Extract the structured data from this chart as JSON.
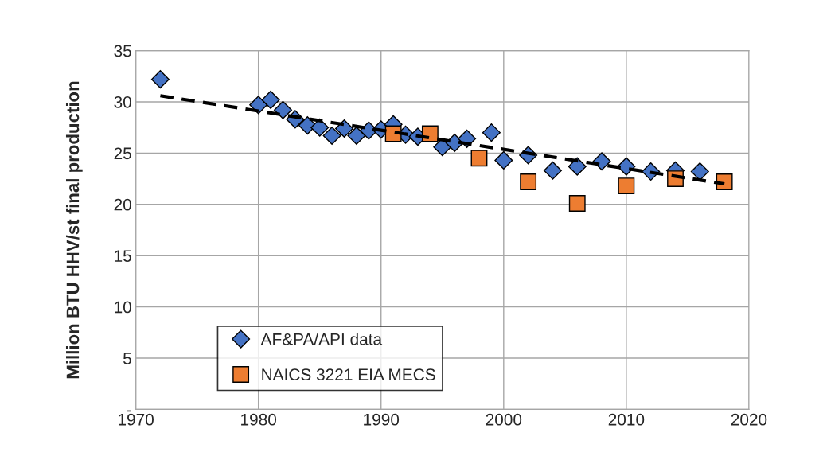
{
  "chart_data": {
    "type": "scatter",
    "ylabel": "Million BTU HHV/st final production",
    "xlim": [
      1970,
      2020
    ],
    "xticks": [
      1970,
      1980,
      1990,
      2000,
      2010,
      2020
    ],
    "ylim": [
      0,
      35
    ],
    "yticks": [
      {
        "value": 0,
        "label": "-"
      },
      5,
      10,
      15,
      20,
      25,
      30,
      35
    ],
    "grid": true,
    "legend": "bottom left",
    "series": [
      {
        "name": "AF&PA/API data",
        "color": "#4472c4",
        "marker": "diamond",
        "x": [
          1972,
          1980,
          1981,
          1982,
          1983,
          1984,
          1985,
          1986,
          1987,
          1988,
          1989,
          1990,
          1991,
          1992,
          1993,
          1994,
          1995,
          1996,
          1997,
          1999,
          2000,
          2002,
          2004,
          2006,
          2008,
          2010,
          2012,
          2014,
          2016
        ],
        "values": [
          32.2,
          29.7,
          30.2,
          29.2,
          28.3,
          27.7,
          27.5,
          26.7,
          27.4,
          26.7,
          27.2,
          27.3,
          27.8,
          26.8,
          26.6,
          null,
          25.6,
          26.0,
          26.4,
          27.0,
          24.3,
          24.8,
          23.3,
          23.7,
          24.2,
          23.7,
          23.2,
          23.3,
          23.2
        ]
      },
      {
        "name": "NAICS 3221 EIA MECS",
        "color": "#ed7d31",
        "marker": "square",
        "x": [
          1991,
          1994,
          1998,
          2002,
          2006,
          2010,
          2014,
          2018
        ],
        "values": [
          26.9,
          26.9,
          24.5,
          22.2,
          20.1,
          21.8,
          22.5,
          22.2
        ]
      },
      {
        "type": "line",
        "color": "#000000",
        "line_style": "dashed",
        "marker": "none",
        "x": [
          1972,
          2018
        ],
        "values": [
          30.6,
          22.0
        ]
      }
    ]
  }
}
